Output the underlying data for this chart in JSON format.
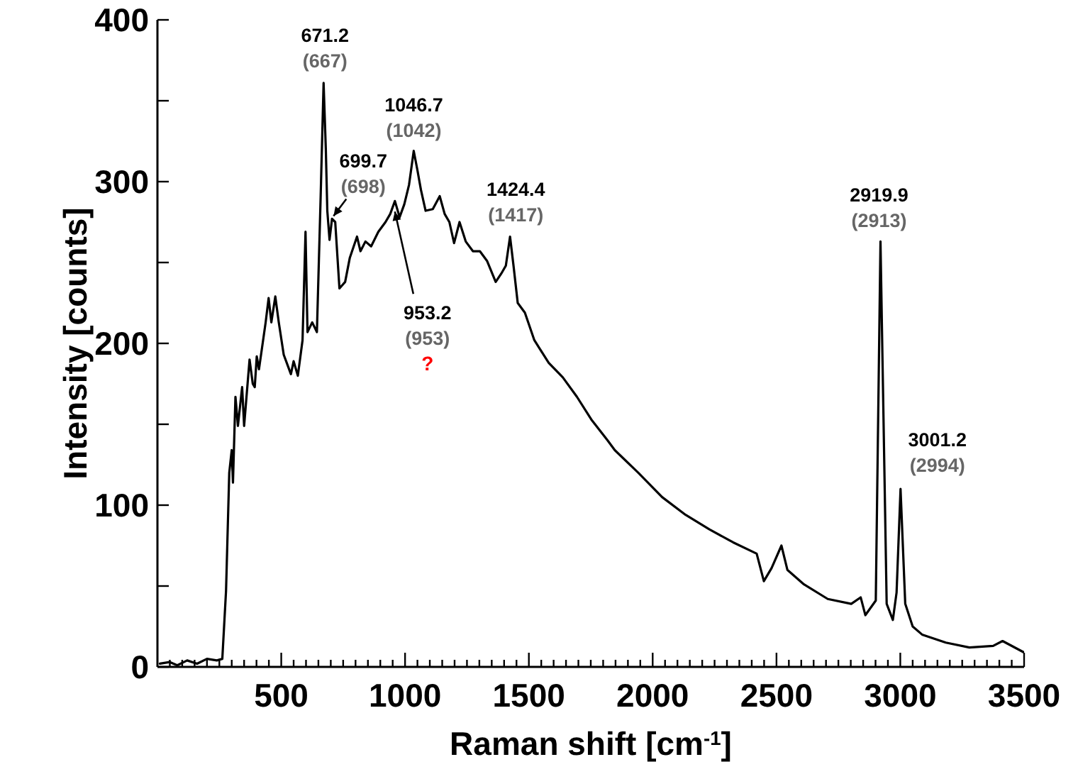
{
  "chart_data": {
    "type": "line",
    "xlabel": "Raman shift [cm$^{-1}$]",
    "ylabel": "Intensity [counts]",
    "x": [
      10,
      50,
      80,
      120,
      160,
      200,
      240,
      262,
      277,
      290,
      300,
      305,
      315,
      325,
      342,
      350,
      372,
      385,
      393,
      401,
      410,
      437,
      449,
      460,
      476,
      490,
      510,
      539,
      550,
      567,
      586,
      598,
      606,
      625,
      644,
      659,
      671,
      680,
      686,
      695,
      705,
      718,
      735,
      758,
      777,
      806,
      820,
      840,
      863,
      892,
      921,
      940,
      959,
      978,
      997,
      1016,
      1035,
      1050,
      1064,
      1083,
      1112,
      1140,
      1160,
      1179,
      1198,
      1220,
      1245,
      1274,
      1302,
      1331,
      1366,
      1388,
      1407,
      1424,
      1438,
      1455,
      1484,
      1522,
      1580,
      1637,
      1694,
      1752,
      1818,
      1847,
      1942,
      2038,
      2133,
      2229,
      2325,
      2420,
      2449,
      2480,
      2520,
      2544,
      2611,
      2707,
      2802,
      2840,
      2859,
      2901,
      2920,
      2945,
      2970,
      2985,
      3001,
      3020,
      3050,
      3088,
      3184,
      3279,
      3375,
      3413,
      3499
    ],
    "series": [
      {
        "color": "#000000",
        "values": [
          2,
          3,
          1,
          4,
          2,
          5,
          4,
          5,
          47,
          120,
          134,
          114,
          167,
          149,
          173,
          149,
          190,
          175,
          173,
          192,
          184,
          213,
          228,
          213,
          229,
          213,
          193,
          181,
          189,
          180,
          202,
          269,
          207,
          213,
          207,
          290,
          361,
          320,
          282,
          264,
          277,
          275,
          234,
          238,
          253,
          266,
          257,
          263,
          260,
          269,
          275,
          280,
          288,
          278,
          286,
          298,
          319,
          307,
          295,
          282,
          283,
          291,
          280,
          275,
          262,
          275,
          263,
          257,
          257,
          251,
          238,
          243,
          248,
          266,
          248,
          225,
          219,
          202,
          188,
          179,
          167,
          153,
          140,
          134,
          120,
          105,
          94,
          85,
          77,
          70,
          53,
          61,
          75,
          60,
          51,
          42,
          39,
          43,
          32,
          41,
          263,
          39,
          29,
          46,
          110,
          39,
          25,
          20,
          15,
          12,
          13,
          16,
          9
        ]
      }
    ],
    "xlim": [
      0,
      3500
    ],
    "xticks": [
      {
        "value": 50,
        "label": null
      },
      {
        "value": 100,
        "label": null
      },
      {
        "value": 150,
        "label": null
      },
      {
        "value": 200,
        "label": null
      },
      {
        "value": 250,
        "label": null
      },
      {
        "value": 300,
        "label": null
      },
      {
        "value": 350,
        "label": null
      },
      {
        "value": 400,
        "label": null
      },
      {
        "value": 450,
        "label": null
      },
      500,
      {
        "value": 550,
        "label": null
      },
      {
        "value": 600,
        "label": null
      },
      {
        "value": 650,
        "label": null
      },
      {
        "value": 700,
        "label": null
      },
      {
        "value": 750,
        "label": null
      },
      {
        "value": 800,
        "label": null
      },
      {
        "value": 850,
        "label": null
      },
      {
        "value": 900,
        "label": null
      },
      {
        "value": 950,
        "label": null
      },
      1000,
      {
        "value": 1050,
        "label": null
      },
      {
        "value": 1100,
        "label": null
      },
      {
        "value": 1150,
        "label": null
      },
      {
        "value": 1200,
        "label": null
      },
      {
        "value": 1250,
        "label": null
      },
      {
        "value": 1300,
        "label": null
      },
      {
        "value": 1350,
        "label": null
      },
      {
        "value": 1400,
        "label": null
      },
      {
        "value": 1450,
        "label": null
      },
      1500,
      {
        "value": 1550,
        "label": null
      },
      {
        "value": 1600,
        "label": null
      },
      {
        "value": 1650,
        "label": null
      },
      {
        "value": 1700,
        "label": null
      },
      {
        "value": 1750,
        "label": null
      },
      {
        "value": 1800,
        "label": null
      },
      {
        "value": 1850,
        "label": null
      },
      {
        "value": 1900,
        "label": null
      },
      {
        "value": 1950,
        "label": null
      },
      2000,
      {
        "value": 2050,
        "label": null
      },
      {
        "value": 2100,
        "label": null
      },
      {
        "value": 2150,
        "label": null
      },
      {
        "value": 2200,
        "label": null
      },
      {
        "value": 2250,
        "label": null
      },
      {
        "value": 2300,
        "label": null
      },
      {
        "value": 2350,
        "label": null
      },
      {
        "value": 2400,
        "label": null
      },
      {
        "value": 2450,
        "label": null
      },
      2500,
      {
        "value": 2550,
        "label": null
      },
      {
        "value": 2600,
        "label": null
      },
      {
        "value": 2650,
        "label": null
      },
      {
        "value": 2700,
        "label": null
      },
      {
        "value": 2750,
        "label": null
      },
      {
        "value": 2800,
        "label": null
      },
      {
        "value": 2850,
        "label": null
      },
      {
        "value": 2900,
        "label": null
      },
      {
        "value": 2950,
        "label": null
      },
      3000,
      {
        "value": 3050,
        "label": null
      },
      {
        "value": 3100,
        "label": null
      },
      {
        "value": 3150,
        "label": null
      },
      {
        "value": 3200,
        "label": null
      },
      {
        "value": 3250,
        "label": null
      },
      {
        "value": 3300,
        "label": null
      },
      {
        "value": 3350,
        "label": null
      },
      {
        "value": 3400,
        "label": null
      },
      {
        "value": 3450,
        "label": null
      },
      3500
    ],
    "ylim": [
      0,
      400
    ],
    "yticks": [
      0,
      {
        "value": 50,
        "label": null
      },
      100,
      {
        "value": 150,
        "label": null
      },
      200,
      {
        "value": 250,
        "label": null
      },
      300,
      {
        "value": 350,
        "label": null
      },
      400
    ],
    "annotations": [
      {
        "text": "671.2\n(667)",
        "x": 671.2,
        "y": 361
      },
      {
        "text": "699.7\n(698)",
        "x": 699.7,
        "y": 277
      },
      {
        "text": "1046.7\n(1042)",
        "x": 1046.7,
        "y": 319
      },
      {
        "text": "1424.4\n(1417)",
        "x": 1424.4,
        "y": 266
      },
      {
        "text": "953.2\n(953)\n?",
        "x": 953.2,
        "y": 285
      },
      {
        "text": "2919.9\n(2913)",
        "x": 2919.9,
        "y": 263
      },
      {
        "text": "3001.2\n(2994)",
        "x": 3001.2,
        "y": 110
      }
    ]
  }
}
